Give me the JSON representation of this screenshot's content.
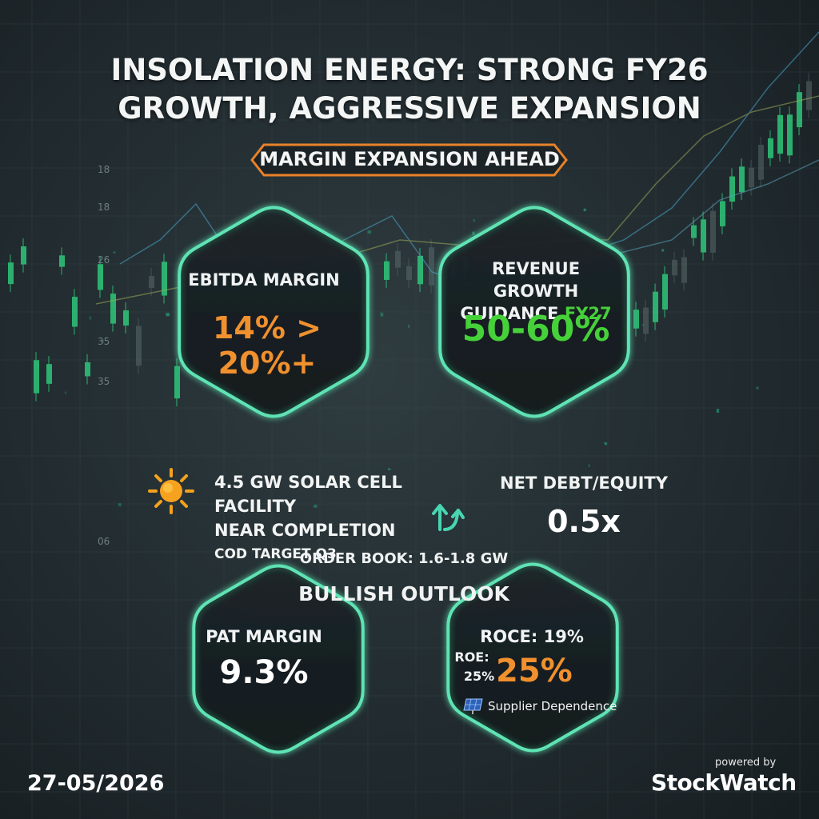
{
  "header": {
    "title_line1": "INSOLATION ENERGY: STRONG FY26",
    "title_line2": "GROWTH, AGGRESSIVE EXPANSION",
    "badge": "MARGIN EXPANSION AHEAD"
  },
  "ebitda": {
    "label": "EBITDA MARGIN",
    "value": "14% > 20%+"
  },
  "revenue": {
    "label_line1": "REVENUE GROWTH",
    "label_line2_a": "GUIDANCE ",
    "label_line2_b": "FY27",
    "value": "50-60%"
  },
  "facility": {
    "line1": "4.5 GW SOLAR CELL FACILITY",
    "line2": "NEAR COMPLETION",
    "line3": "COD TARGET Q3",
    "icon": "sun-icon"
  },
  "debt": {
    "label": "NET DEBT/EQUITY",
    "value": "0.5x"
  },
  "order_book": "ORDER BOOK: 1.6-1.8 GW",
  "outlook": "BULLISH OUTLOOK",
  "pat": {
    "label": "PAT MARGIN",
    "value": "9.3%"
  },
  "returns": {
    "roce": "ROCE: 19%",
    "roe_label": "ROE:",
    "roe_small": "25%",
    "roe_value": "25%",
    "supplier": "Supplier Dependence"
  },
  "axis_ticks": [
    "18",
    "18",
    "26",
    "35",
    "35",
    "06"
  ],
  "footer": {
    "date": "27-05/2026",
    "powered_by": "powered by",
    "brand": "StockWatch"
  },
  "colors": {
    "hex_border": "#5fe3b4",
    "accent_orange": "#f0902e",
    "accent_green": "#46d03a",
    "badge_border": "#e8822a"
  }
}
